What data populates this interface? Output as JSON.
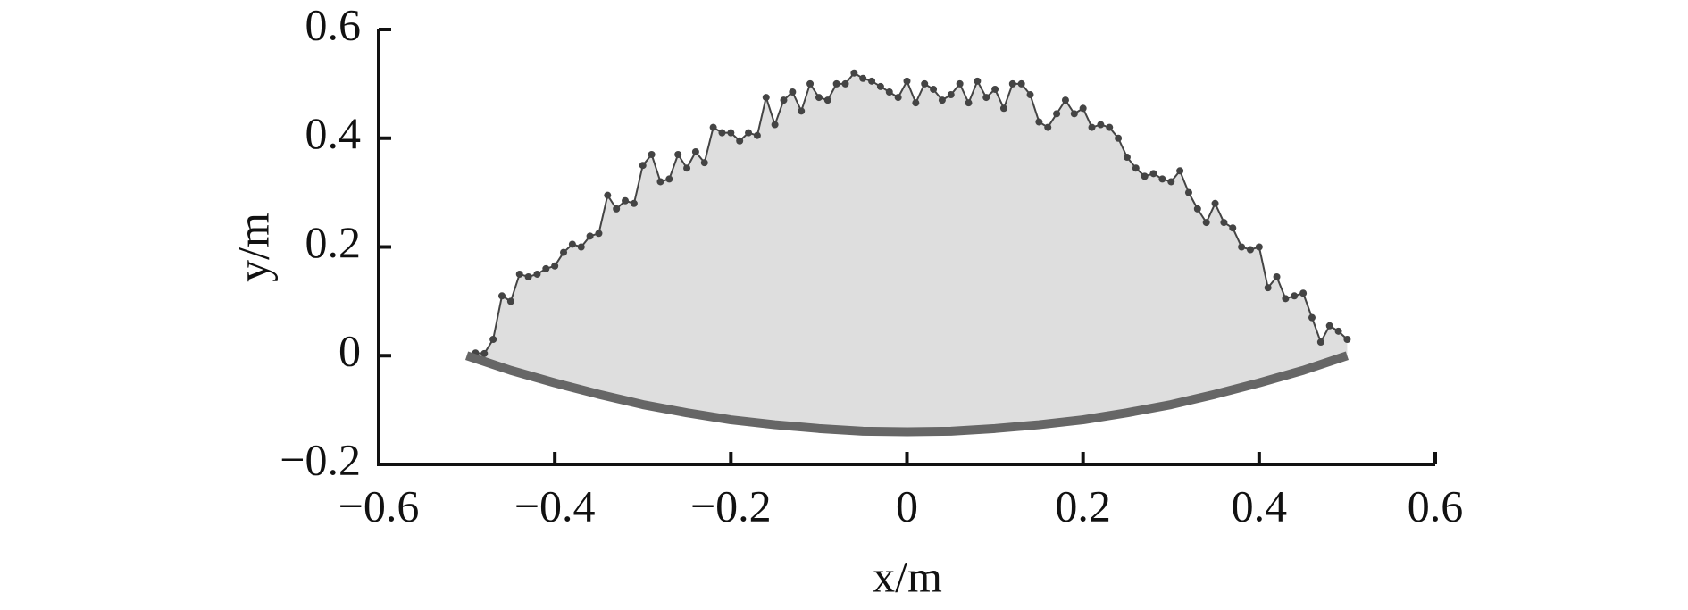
{
  "chart_data": {
    "type": "line",
    "xlabel": "x/m",
    "ylabel": "y/m",
    "xlim": [
      -0.6,
      0.6
    ],
    "xticks": [
      {
        "value": -0.6,
        "label": "−0.6"
      },
      {
        "value": -0.4,
        "label": "−0.4"
      },
      {
        "value": -0.2,
        "label": "−0.2"
      },
      0,
      0.2,
      0.4,
      0.6
    ],
    "ylim": [
      -0.2,
      0.6
    ],
    "yticks": [
      {
        "value": -0.2,
        "label": "−0.2"
      },
      0,
      0.2,
      0.4,
      0.6
    ],
    "area_color": "#dedede",
    "series": [
      {
        "color": "#444444",
        "markers": true,
        "x": [
          -0.49,
          -0.48,
          -0.47,
          -0.46,
          -0.45,
          -0.44,
          -0.43,
          -0.42,
          -0.41,
          -0.4,
          -0.39,
          -0.38,
          -0.37,
          -0.36,
          -0.35,
          -0.34,
          -0.33,
          -0.32,
          -0.31,
          -0.3,
          -0.29,
          -0.28,
          -0.27,
          -0.26,
          -0.25,
          -0.24,
          -0.23,
          -0.22,
          -0.21,
          -0.2,
          -0.19,
          -0.18,
          -0.17,
          -0.16,
          -0.15,
          -0.14,
          -0.13,
          -0.12,
          -0.11,
          -0.1,
          -0.09,
          -0.08,
          -0.07,
          -0.06,
          -0.05,
          -0.04,
          -0.03,
          -0.02,
          -0.01,
          0,
          0.01,
          0.02,
          0.03,
          0.04,
          0.05,
          0.06,
          0.07,
          0.08,
          0.09,
          0.1,
          0.11,
          0.12,
          0.13,
          0.14,
          0.15,
          0.16,
          0.17,
          0.18,
          0.19,
          0.2,
          0.21,
          0.22,
          0.23,
          0.24,
          0.25,
          0.26,
          0.27,
          0.28,
          0.29,
          0.3,
          0.31,
          0.32,
          0.33,
          0.34,
          0.35,
          0.36,
          0.37,
          0.38,
          0.39,
          0.4,
          0.41,
          0.42,
          0.43,
          0.44,
          0.45,
          0.46,
          0.47,
          0.48,
          0.49,
          0.5
        ],
        "values": [
          0.005,
          0.004,
          0.03,
          0.11,
          0.1,
          0.15,
          0.145,
          0.15,
          0.16,
          0.165,
          0.19,
          0.205,
          0.2,
          0.22,
          0.225,
          0.295,
          0.27,
          0.285,
          0.28,
          0.35,
          0.37,
          0.32,
          0.325,
          0.37,
          0.345,
          0.375,
          0.355,
          0.42,
          0.41,
          0.41,
          0.395,
          0.41,
          0.405,
          0.475,
          0.425,
          0.47,
          0.485,
          0.45,
          0.5,
          0.475,
          0.47,
          0.5,
          0.5,
          0.52,
          0.51,
          0.505,
          0.495,
          0.485,
          0.475,
          0.505,
          0.465,
          0.5,
          0.49,
          0.47,
          0.48,
          0.5,
          0.465,
          0.505,
          0.475,
          0.49,
          0.455,
          0.5,
          0.5,
          0.48,
          0.43,
          0.42,
          0.445,
          0.47,
          0.445,
          0.455,
          0.42,
          0.425,
          0.42,
          0.4,
          0.365,
          0.345,
          0.33,
          0.335,
          0.325,
          0.32,
          0.34,
          0.3,
          0.27,
          0.245,
          0.28,
          0.245,
          0.235,
          0.2,
          0.195,
          0.2,
          0.125,
          0.145,
          0.105,
          0.11,
          0.115,
          0.07,
          0.025,
          0.055,
          0.045,
          0.03
        ]
      },
      {
        "color": "#666666",
        "markers": false,
        "x": [
          -0.5,
          -0.45,
          -0.4,
          -0.35,
          -0.3,
          -0.25,
          -0.2,
          -0.15,
          -0.1,
          -0.05,
          0,
          0.05,
          0.1,
          0.15,
          0.2,
          0.25,
          0.3,
          0.35,
          0.4,
          0.45,
          0.5
        ],
        "values": [
          0,
          -0.027,
          -0.05,
          -0.071,
          -0.09,
          -0.105,
          -0.118,
          -0.127,
          -0.134,
          -0.139,
          -0.14,
          -0.139,
          -0.134,
          -0.127,
          -0.118,
          -0.105,
          -0.09,
          -0.071,
          -0.05,
          -0.027,
          0
        ]
      }
    ]
  }
}
